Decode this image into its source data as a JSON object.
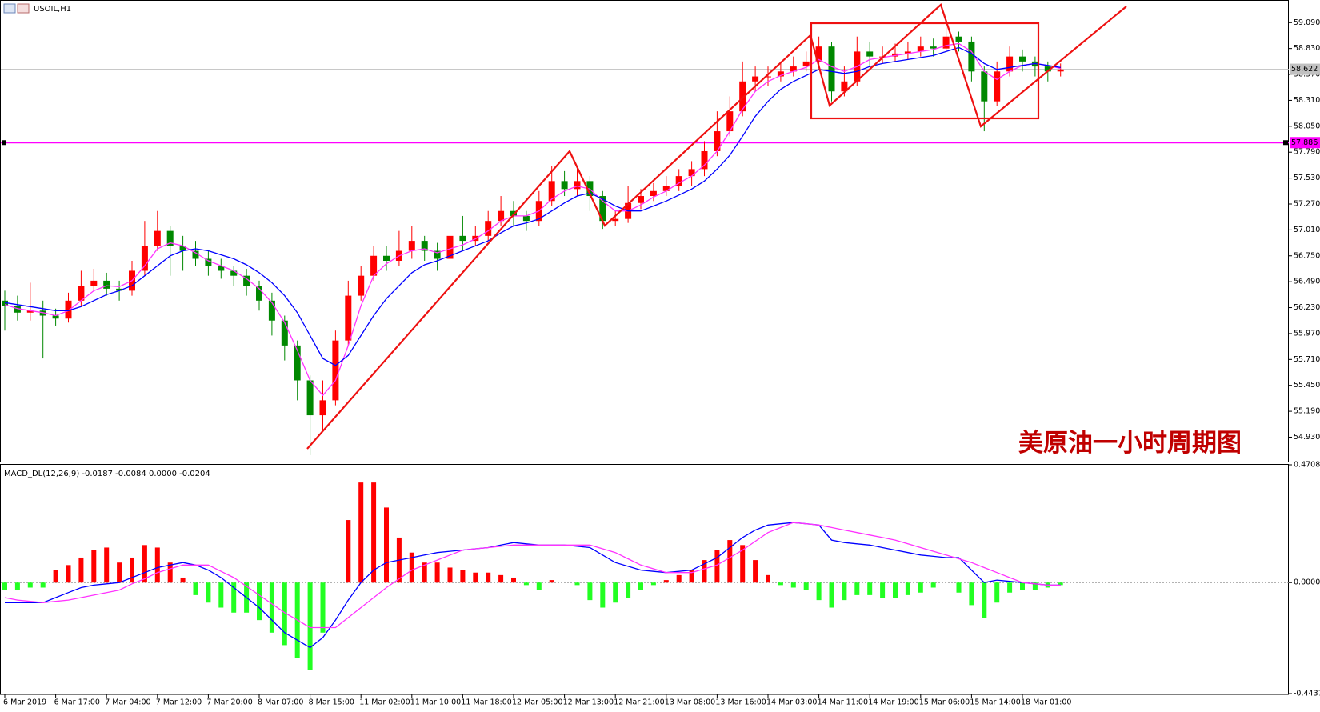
{
  "chart_data": [
    {
      "type": "candlestick",
      "title": "USOIL,H1",
      "annotation": "美原油一小时周期图",
      "categories": [
        "6 Mar 2019",
        null,
        null,
        null,
        "6 Mar 17:00",
        null,
        null,
        null,
        "7 Mar 04:00",
        null,
        null,
        null,
        "7 Mar 12:00",
        null,
        null,
        null,
        "7 Mar 20:00",
        null,
        null,
        null,
        "8 Mar 07:00",
        null,
        null,
        null,
        "8 Mar 15:00",
        null,
        null,
        null,
        "11 Mar 02:00",
        null,
        null,
        null,
        "11 Mar 10:00",
        null,
        null,
        null,
        "11 Mar 18:00",
        null,
        null,
        null,
        "12 Mar 05:00",
        null,
        null,
        null,
        "12 Mar 13:00",
        null,
        null,
        null,
        "12 Mar 21:00",
        null,
        null,
        null,
        "13 Mar 08:00",
        null,
        null,
        null,
        "13 Mar 16:00",
        null,
        null,
        null,
        "14 Mar 03:00",
        null,
        null,
        null,
        "14 Mar 11:00",
        null,
        null,
        null,
        "14 Mar 19:00",
        null,
        null,
        null,
        "15 Mar 06:00",
        null,
        null,
        null,
        "15 Mar 14:00",
        null,
        null,
        null,
        "18 Mar 01:00",
        null,
        null,
        null
      ],
      "open": [
        56.3,
        56.25,
        56.18,
        56.2,
        56.15,
        56.12,
        56.3,
        56.45,
        56.5,
        56.42,
        56.4,
        56.6,
        56.85,
        57.0,
        56.85,
        56.8,
        56.72,
        56.65,
        56.6,
        56.55,
        56.45,
        56.3,
        56.1,
        55.85,
        55.5,
        55.15,
        55.3,
        55.9,
        56.35,
        56.55,
        56.75,
        56.7,
        56.8,
        56.9,
        56.8,
        56.72,
        56.95,
        56.9,
        56.95,
        57.1,
        57.2,
        57.15,
        57.1,
        57.3,
        57.5,
        57.42,
        57.5,
        57.35,
        57.1,
        57.12,
        57.28,
        57.35,
        57.4,
        57.45,
        57.55,
        57.62,
        57.8,
        58.0,
        58.2,
        58.5,
        58.55,
        58.55,
        58.6,
        58.65,
        58.7,
        58.85,
        58.4,
        58.5,
        58.8,
        58.75,
        58.75,
        58.78,
        58.8,
        58.85,
        58.83,
        58.95,
        58.9,
        58.6,
        58.3,
        58.6,
        58.75,
        58.7,
        58.65,
        58.6
      ],
      "high": [
        56.4,
        56.35,
        56.48,
        56.3,
        56.22,
        56.38,
        56.6,
        56.62,
        56.58,
        56.5,
        56.7,
        57.1,
        57.2,
        57.05,
        56.95,
        56.9,
        56.8,
        56.72,
        56.65,
        56.62,
        56.5,
        56.38,
        56.15,
        55.9,
        55.55,
        55.5,
        56.0,
        56.5,
        56.65,
        56.85,
        56.85,
        57.0,
        57.05,
        56.95,
        56.88,
        57.2,
        57.15,
        57.05,
        57.2,
        57.35,
        57.3,
        57.2,
        57.4,
        57.65,
        57.6,
        57.65,
        57.55,
        57.4,
        57.2,
        57.45,
        57.42,
        57.48,
        57.55,
        57.62,
        57.7,
        57.9,
        58.2,
        58.35,
        58.7,
        58.65,
        58.65,
        58.7,
        58.75,
        58.8,
        58.95,
        58.9,
        58.65,
        58.95,
        58.9,
        58.85,
        58.88,
        58.9,
        58.95,
        58.93,
        59.05,
        59.0,
        58.95,
        58.65,
        58.7,
        58.85,
        58.82,
        58.75,
        58.7,
        58.68
      ],
      "low": [
        56.0,
        56.1,
        56.1,
        55.72,
        56.05,
        56.08,
        56.25,
        56.4,
        56.35,
        56.3,
        56.35,
        56.55,
        56.8,
        56.55,
        56.6,
        56.65,
        56.55,
        56.52,
        56.45,
        56.35,
        56.2,
        55.95,
        55.7,
        55.3,
        54.75,
        55.0,
        55.25,
        55.85,
        56.3,
        56.5,
        56.6,
        56.65,
        56.72,
        56.7,
        56.6,
        56.68,
        56.8,
        56.85,
        56.9,
        57.05,
        57.05,
        57.0,
        57.05,
        57.25,
        57.35,
        57.35,
        57.2,
        57.02,
        57.05,
        57.08,
        57.22,
        57.3,
        57.35,
        57.4,
        57.45,
        57.55,
        57.75,
        57.95,
        58.15,
        58.4,
        58.45,
        58.5,
        58.55,
        58.6,
        58.65,
        58.3,
        58.35,
        58.45,
        58.65,
        58.68,
        58.7,
        58.72,
        58.75,
        58.75,
        58.8,
        58.8,
        58.5,
        58.0,
        58.25,
        58.55,
        58.6,
        58.55,
        58.5,
        58.55
      ],
      "close": [
        56.25,
        56.18,
        56.2,
        56.15,
        56.12,
        56.3,
        56.45,
        56.5,
        56.42,
        56.4,
        56.6,
        56.85,
        57.0,
        56.85,
        56.8,
        56.72,
        56.65,
        56.6,
        56.55,
        56.45,
        56.3,
        56.1,
        55.85,
        55.5,
        55.15,
        55.3,
        55.9,
        56.35,
        56.55,
        56.75,
        56.7,
        56.8,
        56.9,
        56.8,
        56.72,
        56.95,
        56.9,
        56.95,
        57.1,
        57.2,
        57.15,
        57.1,
        57.3,
        57.5,
        57.42,
        57.5,
        57.35,
        57.1,
        57.12,
        57.28,
        57.35,
        57.4,
        57.45,
        57.55,
        57.62,
        57.8,
        58.0,
        58.2,
        58.5,
        58.55,
        58.55,
        58.6,
        58.65,
        58.7,
        58.85,
        58.4,
        58.5,
        58.8,
        58.75,
        58.75,
        58.78,
        58.8,
        58.85,
        58.83,
        58.95,
        58.9,
        58.6,
        58.3,
        58.6,
        58.75,
        58.7,
        58.65,
        58.6,
        58.62
      ],
      "up_color": "#ff0000",
      "down_color": "#008800",
      "lines": [
        {
          "color": "#ff33ff",
          "values": [
            56.26,
            56.22,
            56.2,
            56.18,
            56.15,
            56.2,
            56.3,
            56.4,
            56.45,
            56.44,
            56.5,
            56.65,
            56.82,
            56.88,
            56.85,
            56.78,
            56.7,
            56.65,
            56.6,
            56.52,
            56.42,
            56.28,
            56.08,
            55.8,
            55.5,
            55.35,
            55.5,
            55.85,
            56.25,
            56.55,
            56.67,
            56.75,
            56.8,
            56.82,
            56.78,
            56.82,
            56.86,
            56.92,
            57.0,
            57.1,
            57.15,
            57.15,
            57.2,
            57.32,
            57.4,
            57.45,
            57.42,
            57.3,
            57.2,
            57.2,
            57.26,
            57.34,
            57.4,
            57.48,
            57.55,
            57.66,
            57.8,
            58.0,
            58.22,
            58.4,
            58.5,
            58.56,
            58.6,
            58.64,
            58.72,
            58.65,
            58.6,
            58.65,
            58.72,
            58.74,
            58.76,
            58.78,
            58.8,
            58.82,
            58.86,
            58.88,
            58.8,
            58.6,
            58.52,
            58.6,
            58.66,
            58.68,
            58.66,
            58.63
          ]
        },
        {
          "color": "#0000ff",
          "values": [
            56.28,
            56.26,
            56.24,
            56.22,
            56.2,
            56.2,
            56.24,
            56.3,
            56.36,
            56.4,
            56.45,
            56.55,
            56.65,
            56.75,
            56.8,
            56.82,
            56.8,
            56.76,
            56.72,
            56.66,
            56.58,
            56.48,
            56.35,
            56.18,
            55.95,
            55.72,
            55.65,
            55.75,
            55.95,
            56.15,
            56.32,
            56.45,
            56.58,
            56.66,
            56.7,
            56.75,
            56.8,
            56.85,
            56.9,
            56.98,
            57.05,
            57.08,
            57.12,
            57.2,
            57.28,
            57.35,
            57.38,
            57.32,
            57.25,
            57.2,
            57.2,
            57.25,
            57.3,
            57.36,
            57.42,
            57.5,
            57.62,
            57.76,
            57.95,
            58.15,
            58.3,
            58.42,
            58.5,
            58.56,
            58.62,
            58.6,
            58.58,
            58.6,
            58.65,
            58.68,
            58.7,
            58.72,
            58.74,
            58.76,
            58.8,
            58.84,
            58.78,
            58.68,
            58.62,
            58.64,
            58.66,
            58.68,
            58.66,
            58.64
          ]
        }
      ],
      "levels": [
        {
          "value": 57.886,
          "color": "#ff00ff"
        },
        {
          "value": 58.622,
          "color": "#c0c0c0"
        }
      ],
      "ylim": [
        54.685,
        59.309
      ],
      "yticks": [
        {
          "value": 54.93,
          "label": "54.930"
        },
        {
          "value": 55.19,
          "label": "55.190"
        },
        {
          "value": 55.45,
          "label": "55.450"
        },
        {
          "value": 55.71,
          "label": "55.710"
        },
        {
          "value": 55.97,
          "label": "55.970"
        },
        {
          "value": 56.23,
          "label": "56.230"
        },
        {
          "value": 56.49,
          "label": "56.490"
        },
        {
          "value": 56.75,
          "label": "56.750"
        },
        {
          "value": 57.01,
          "label": "57.010"
        },
        {
          "value": 57.27,
          "label": "57.270"
        },
        {
          "value": 57.53,
          "label": "57.530"
        },
        {
          "value": 57.79,
          "label": "57.790"
        },
        {
          "value": 58.05,
          "label": "58.050"
        },
        {
          "value": 58.31,
          "label": "58.310"
        },
        {
          "value": 58.57,
          "label": "58.570"
        },
        {
          "value": 58.83,
          "label": "58.830"
        },
        {
          "value": 59.09,
          "label": "59.090"
        }
      ]
    },
    {
      "type": "macd",
      "title": "MACD_DL(12,26,9) -0.0187 -0.0084 0.0000 -0.0204",
      "values": [
        -0.03,
        -0.03,
        -0.02,
        -0.02,
        0.05,
        0.07,
        0.1,
        0.13,
        0.14,
        0.08,
        0.1,
        0.15,
        0.14,
        0.08,
        0.02,
        -0.05,
        -0.08,
        -0.1,
        -0.12,
        -0.12,
        -0.15,
        -0.2,
        -0.25,
        -0.3,
        -0.35,
        -0.2,
        0.0,
        0.25,
        0.4,
        0.4,
        0.3,
        0.18,
        0.12,
        0.08,
        0.08,
        0.06,
        0.05,
        0.04,
        0.04,
        0.03,
        0.02,
        -0.01,
        -0.03,
        0.01,
        0.0,
        -0.01,
        -0.07,
        -0.1,
        -0.08,
        -0.06,
        -0.03,
        -0.01,
        0.01,
        0.03,
        0.05,
        0.09,
        0.13,
        0.17,
        0.15,
        0.09,
        0.03,
        -0.01,
        -0.02,
        -0.03,
        -0.07,
        -0.1,
        -0.07,
        -0.05,
        -0.05,
        -0.06,
        -0.06,
        -0.05,
        -0.04,
        -0.02,
        0.0,
        -0.04,
        -0.09,
        -0.14,
        -0.08,
        -0.04,
        -0.03,
        -0.03,
        -0.02,
        -0.01
      ],
      "pos_color": "#ff0000",
      "neg_color": "#22ff22",
      "lines": [
        {
          "color": "#0000ff",
          "values": [
            -0.08,
            -0.08,
            -0.08,
            -0.08,
            -0.06,
            -0.04,
            -0.02,
            -0.01,
            -0.005,
            0.0,
            0.02,
            0.04,
            0.06,
            0.07,
            0.08,
            0.07,
            0.05,
            0.02,
            -0.02,
            -0.06,
            -0.1,
            -0.15,
            -0.2,
            -0.23,
            -0.26,
            -0.22,
            -0.15,
            -0.07,
            0.0,
            0.05,
            0.08,
            0.09,
            0.1,
            0.11,
            0.12,
            0.125,
            0.13,
            0.135,
            0.14,
            0.15,
            0.16,
            0.155,
            0.15,
            0.15,
            0.15,
            0.145,
            0.14,
            0.11,
            0.08,
            0.065,
            0.05,
            0.045,
            0.04,
            0.045,
            0.05,
            0.075,
            0.1,
            0.14,
            0.18,
            0.21,
            0.23,
            0.235,
            0.24,
            0.235,
            0.23,
            0.17,
            0.16,
            0.155,
            0.15,
            0.14,
            0.13,
            0.12,
            0.11,
            0.105,
            0.1,
            0.1,
            0.05,
            0.0,
            0.01,
            0.005,
            0.0,
            -0.005,
            -0.01,
            -0.01
          ]
        },
        {
          "color": "#ff33ff",
          "values": [
            -0.06,
            -0.07,
            -0.075,
            -0.08,
            -0.075,
            -0.07,
            -0.06,
            -0.05,
            -0.04,
            -0.03,
            -0.005,
            0.015,
            0.04,
            0.055,
            0.07,
            0.07,
            0.07,
            0.045,
            0.02,
            -0.015,
            -0.05,
            -0.085,
            -0.12,
            -0.15,
            -0.18,
            -0.18,
            -0.18,
            -0.14,
            -0.1,
            -0.06,
            -0.02,
            0.015,
            0.05,
            0.07,
            0.09,
            0.11,
            0.13,
            0.135,
            0.14,
            0.145,
            0.15,
            0.15,
            0.15,
            0.15,
            0.15,
            0.15,
            0.15,
            0.135,
            0.12,
            0.095,
            0.07,
            0.055,
            0.04,
            0.04,
            0.04,
            0.055,
            0.07,
            0.1,
            0.13,
            0.165,
            0.2,
            0.22,
            0.24,
            0.235,
            0.23,
            0.22,
            0.21,
            0.2,
            0.19,
            0.18,
            0.17,
            0.155,
            0.14,
            0.125,
            0.11,
            0.095,
            0.08,
            0.06,
            0.04,
            0.02,
            0.0,
            -0.005,
            -0.01,
            -0.01
          ]
        }
      ],
      "ylim": [
        -0.4437,
        0.4708
      ],
      "yticks": [
        {
          "value": -0.4437,
          "label": "-0.4437"
        },
        {
          "value": 0,
          "label": "0.0000"
        },
        {
          "value": 0.4708,
          "label": "0.4708"
        }
      ]
    }
  ]
}
